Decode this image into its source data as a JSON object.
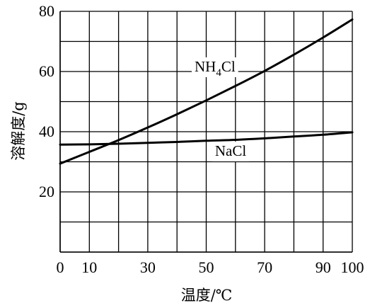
{
  "chart_data": {
    "type": "line",
    "xlabel": "温度/℃",
    "ylabel": "溶解度/g",
    "xlim": [
      0,
      100
    ],
    "ylim": [
      0,
      80
    ],
    "x_tick_labels": [
      "0",
      "10",
      "30",
      "50",
      "70",
      "90",
      "100"
    ],
    "x_tick_values": [
      0,
      10,
      30,
      50,
      70,
      90,
      100
    ],
    "y_tick_labels": [
      "20",
      "40",
      "60",
      "80"
    ],
    "y_tick_values": [
      20,
      40,
      60,
      80
    ],
    "grid": true,
    "grid_x_values": [
      0,
      10,
      20,
      30,
      40,
      50,
      60,
      70,
      80,
      90,
      100
    ],
    "grid_y_values": [
      0,
      10,
      20,
      30,
      40,
      50,
      60,
      70,
      80
    ],
    "series": [
      {
        "name": "NH4Cl",
        "label_main": "NH",
        "label_sub": "4",
        "label_tail": "Cl",
        "label_x": 46,
        "label_y": 60,
        "x": [
          0,
          10,
          20,
          30,
          40,
          50,
          60,
          70,
          80,
          90,
          100
        ],
        "y": [
          29.4,
          33.3,
          37.2,
          41.4,
          45.8,
          50.4,
          55.2,
          60.2,
          65.6,
          71.3,
          77.3
        ]
      },
      {
        "name": "NaCl",
        "label_main": "NaCl",
        "label_x": 53,
        "label_y": 32,
        "x": [
          0,
          10,
          20,
          30,
          40,
          50,
          60,
          70,
          80,
          90,
          100
        ],
        "y": [
          35.7,
          35.8,
          36.0,
          36.3,
          36.6,
          37.0,
          37.3,
          37.8,
          38.4,
          39.0,
          39.8
        ]
      }
    ]
  }
}
